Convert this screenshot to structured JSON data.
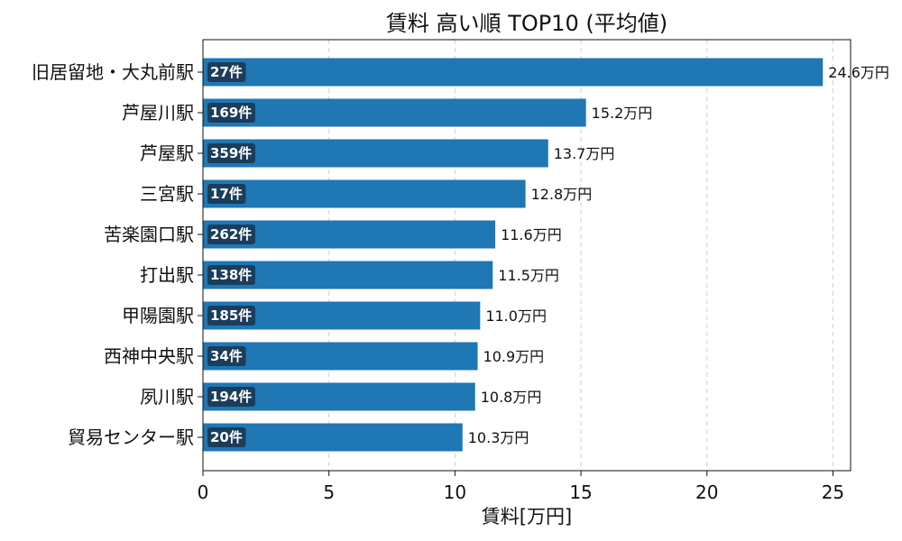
{
  "chart_data": {
    "type": "bar",
    "orientation": "horizontal",
    "title": "賃料 高い順 TOP10 (平均値)",
    "xlabel": "賃料[万円]",
    "ylabel": "",
    "xlim": [
      0,
      25.7
    ],
    "xticks": [
      0,
      5,
      10,
      15,
      20,
      25
    ],
    "grid": "x-dashed",
    "bar_color": "#1f77b4",
    "count_badge_color": "#1b3d5a",
    "categories": [
      "旧居留地・大丸前駅",
      "芦屋川駅",
      "芦屋駅",
      "三宮駅",
      "苦楽園口駅",
      "打出駅",
      "甲陽園駅",
      "西神中央駅",
      "夙川駅",
      "貿易センター駅"
    ],
    "values": [
      24.6,
      15.2,
      13.7,
      12.8,
      11.6,
      11.5,
      11.0,
      10.9,
      10.8,
      10.3
    ],
    "value_labels": [
      "24.6万円",
      "15.2万円",
      "13.7万円",
      "12.8万円",
      "11.6万円",
      "11.5万円",
      "11.0万円",
      "10.9万円",
      "10.8万円",
      "10.3万円"
    ],
    "counts": [
      "27件",
      "169件",
      "359件",
      "17件",
      "262件",
      "138件",
      "185件",
      "34件",
      "194件",
      "20件"
    ]
  }
}
